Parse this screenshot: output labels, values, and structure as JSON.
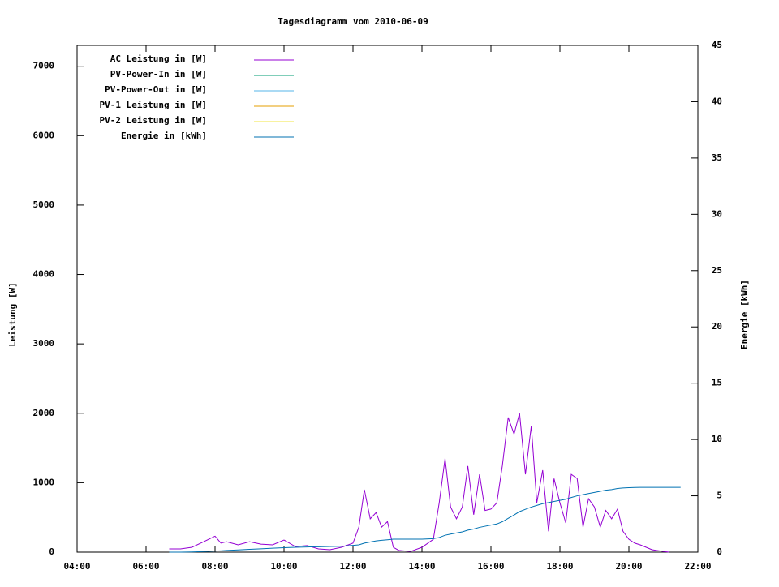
{
  "chart_data": {
    "type": "line",
    "title": "Tagesdiagramm vom 2010-06-09",
    "y_label": "Leistung [W]",
    "y2_label": "Energie [kWh]",
    "xlim": [
      4,
      22
    ],
    "xticks": [
      {
        "value": 4,
        "label": "04:00"
      },
      {
        "value": 6,
        "label": "06:00"
      },
      {
        "value": 8,
        "label": "08:00"
      },
      {
        "value": 10,
        "label": "10:00"
      },
      {
        "value": 12,
        "label": "12:00"
      },
      {
        "value": 14,
        "label": "14:00"
      },
      {
        "value": 16,
        "label": "16:00"
      },
      {
        "value": 18,
        "label": "18:00"
      },
      {
        "value": 20,
        "label": "20:00"
      },
      {
        "value": 22,
        "label": "22:00"
      }
    ],
    "ylim": [
      0,
      7300
    ],
    "yticks": [
      0,
      1000,
      2000,
      3000,
      4000,
      5000,
      6000,
      7000
    ],
    "y2lim": [
      0,
      45
    ],
    "y2ticks": [
      0,
      5,
      10,
      15,
      20,
      25,
      30,
      35,
      40,
      45
    ],
    "legend": "top-left",
    "x": [
      6.67,
      7,
      7.33,
      7.67,
      8,
      8.17,
      8.33,
      8.67,
      9,
      9.33,
      9.67,
      10,
      10.33,
      10.67,
      11,
      11.33,
      11.67,
      12,
      12.17,
      12.33,
      12.5,
      12.67,
      12.83,
      13,
      13.17,
      13.33,
      13.67,
      14,
      14.33,
      14.5,
      14.67,
      14.83,
      15,
      15.17,
      15.33,
      15.5,
      15.67,
      15.83,
      16,
      16.17,
      16.33,
      16.5,
      16.67,
      16.83,
      17,
      17.17,
      17.33,
      17.5,
      17.67,
      17.83,
      18,
      18.17,
      18.33,
      18.5,
      18.67,
      18.83,
      19,
      19.17,
      19.33,
      19.5,
      19.67,
      19.83,
      20,
      20.17,
      20.33,
      20.67,
      21,
      21.17,
      21.5
    ],
    "series": [
      {
        "name": "AC Leistung in [W]",
        "color": "#9400d3",
        "values": [
          47,
          47,
          70,
          150,
          230,
          130,
          150,
          105,
          150,
          115,
          105,
          175,
          80,
          95,
          47,
          35,
          70,
          130,
          360,
          900,
          480,
          570,
          360,
          440,
          70,
          25,
          10,
          70,
          185,
          710,
          1350,
          650,
          480,
          650,
          1240,
          540,
          1120,
          600,
          620,
          710,
          1240,
          1940,
          1700,
          2000,
          1120,
          1820,
          710,
          1180,
          300,
          1060,
          710,
          420,
          1120,
          1060,
          360,
          770,
          650,
          360,
          600,
          480,
          620,
          300,
          185,
          130,
          105,
          35,
          10,
          0,
          null
        ]
      },
      {
        "name": "PV-Power-In in [W]",
        "color": "#009e73",
        "values": [
          null,
          null,
          null,
          null,
          null,
          null,
          null,
          null,
          null,
          null,
          null,
          null,
          null,
          null,
          null,
          null,
          null,
          null,
          null,
          null,
          null,
          null,
          null,
          null,
          null,
          null,
          null,
          null,
          null,
          null,
          null,
          null,
          null,
          null,
          null,
          null,
          null,
          null,
          null,
          null,
          null,
          null,
          null,
          null,
          null,
          null,
          null,
          null,
          null,
          null,
          null,
          null,
          null,
          null,
          null,
          null,
          null,
          null,
          null,
          null,
          null,
          null,
          null,
          null,
          null,
          null,
          null,
          null,
          null
        ]
      },
      {
        "name": "PV-Power-Out in [W]",
        "color": "#56b4e9",
        "values": [
          null,
          null,
          null,
          null,
          null,
          null,
          null,
          null,
          null,
          null,
          null,
          null,
          null,
          null,
          null,
          null,
          null,
          null,
          null,
          null,
          null,
          null,
          null,
          null,
          null,
          null,
          null,
          null,
          null,
          null,
          null,
          null,
          null,
          null,
          null,
          null,
          null,
          null,
          null,
          null,
          null,
          null,
          null,
          null,
          null,
          null,
          null,
          null,
          null,
          null,
          null,
          null,
          null,
          null,
          null,
          null,
          null,
          null,
          null,
          null,
          null,
          null,
          null,
          null,
          null,
          null,
          null,
          null,
          null
        ]
      },
      {
        "name": "PV-1 Leistung in [W]",
        "color": "#e69f00",
        "values": [
          null,
          null,
          null,
          null,
          null,
          null,
          null,
          null,
          null,
          null,
          null,
          null,
          null,
          null,
          null,
          null,
          null,
          null,
          null,
          null,
          null,
          null,
          null,
          null,
          null,
          null,
          null,
          null,
          null,
          null,
          null,
          null,
          null,
          null,
          null,
          null,
          null,
          null,
          null,
          null,
          null,
          null,
          null,
          null,
          null,
          null,
          null,
          null,
          null,
          null,
          null,
          null,
          null,
          null,
          null,
          null,
          null,
          null,
          null,
          null,
          null,
          null,
          null,
          null,
          null,
          null,
          null,
          null,
          null
        ]
      },
      {
        "name": "PV-2 Leistung in [W]",
        "color": "#f0e442",
        "values": [
          null,
          null,
          null,
          null,
          null,
          null,
          null,
          null,
          null,
          null,
          null,
          null,
          null,
          null,
          null,
          null,
          null,
          null,
          null,
          null,
          null,
          null,
          null,
          null,
          null,
          null,
          null,
          null,
          null,
          null,
          null,
          null,
          null,
          null,
          null,
          null,
          null,
          null,
          null,
          null,
          null,
          null,
          null,
          null,
          null,
          null,
          null,
          null,
          null,
          null,
          null,
          null,
          null,
          null,
          null,
          null,
          null,
          null,
          null,
          null,
          null,
          null,
          null,
          null,
          null,
          null,
          null,
          null,
          null
        ]
      },
      {
        "name": "Energie in [kWh]",
        "color": "#0072b2",
        "axis": "y2",
        "values": [
          0,
          0,
          0.02,
          0.05,
          0.1,
          0.12,
          0.15,
          0.2,
          0.25,
          0.3,
          0.35,
          0.4,
          0.43,
          0.46,
          0.48,
          0.5,
          0.52,
          0.6,
          0.65,
          0.8,
          0.9,
          1.0,
          1.05,
          1.1,
          1.15,
          1.15,
          1.15,
          1.15,
          1.2,
          1.3,
          1.5,
          1.6,
          1.7,
          1.8,
          1.95,
          2.05,
          2.2,
          2.3,
          2.4,
          2.5,
          2.7,
          3.0,
          3.3,
          3.6,
          3.8,
          4.0,
          4.15,
          4.3,
          4.4,
          4.5,
          4.6,
          4.7,
          4.85,
          5.0,
          5.1,
          5.2,
          5.3,
          5.4,
          5.5,
          5.55,
          5.65,
          5.7,
          5.72,
          5.74,
          5.75,
          5.75,
          5.75,
          5.75,
          5.75
        ]
      }
    ]
  }
}
